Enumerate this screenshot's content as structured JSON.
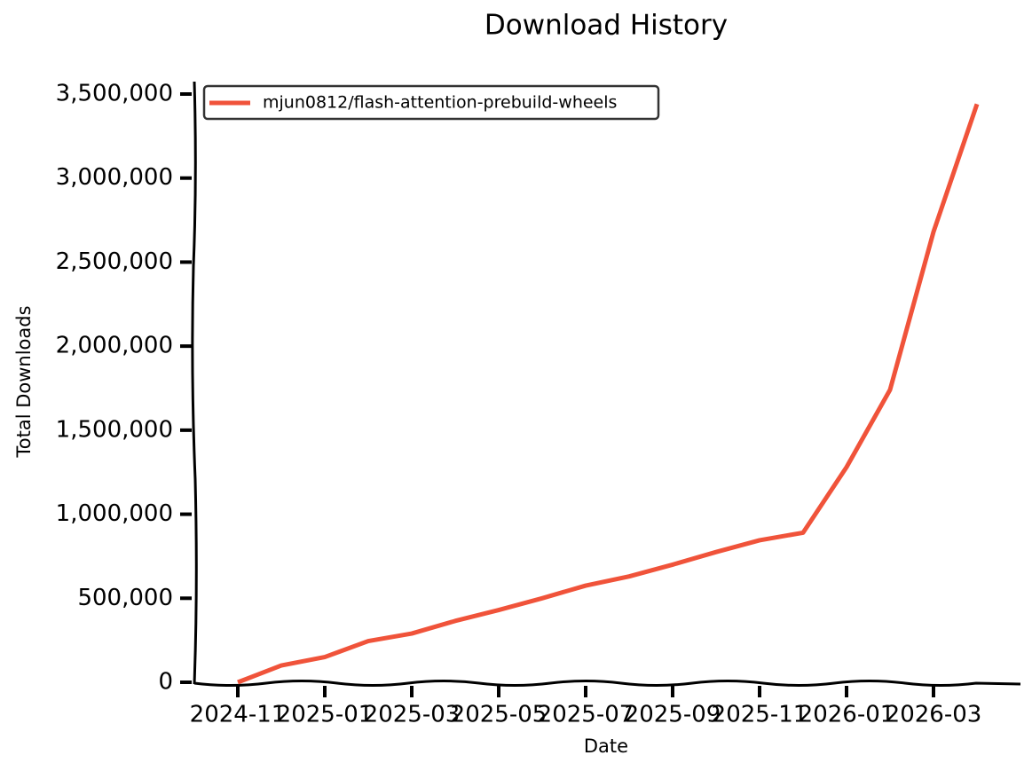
{
  "chart_data": {
    "type": "line",
    "title": "Download History",
    "x_label": "Date",
    "y_label": "Total Downloads",
    "x": [
      "2024-11",
      "2024-12",
      "2025-01",
      "2025-02",
      "2025-03",
      "2025-04",
      "2025-05",
      "2025-06",
      "2025-07",
      "2025-08",
      "2025-09",
      "2025-10",
      "2025-11",
      "2025-12",
      "2026-01",
      "2026-02",
      "2026-03",
      "2026-04"
    ],
    "series": [
      {
        "name": "mjun0812/flash-attention-prebuild-wheels",
        "color": "#f0533a",
        "values": [
          0,
          100000,
          150000,
          245000,
          290000,
          365000,
          430000,
          500000,
          575000,
          630000,
          700000,
          775000,
          845000,
          890000,
          1280000,
          1740000,
          2680000,
          3440000
        ]
      }
    ],
    "xlim": [
      "2024-10",
      "2026-05"
    ],
    "xticks": [
      "2024-11",
      "2025-01",
      "2025-03",
      "2025-05",
      "2025-07",
      "2025-09",
      "2025-11",
      "2026-01",
      "2026-03"
    ],
    "ylim": [
      0,
      3500000
    ],
    "yticks": [
      0,
      {
        "value": 500000,
        "label": "500,000"
      },
      {
        "value": 1000000,
        "label": "1,000,000"
      },
      {
        "value": 1500000,
        "label": "1,500,000"
      },
      {
        "value": 2000000,
        "label": "2,000,000"
      },
      {
        "value": 2500000,
        "label": "2,500,000"
      },
      {
        "value": 3000000,
        "label": "3,000,000"
      },
      {
        "value": 3500000,
        "label": "3,500,000"
      }
    ],
    "legend": "upper-left",
    "grid": false
  }
}
